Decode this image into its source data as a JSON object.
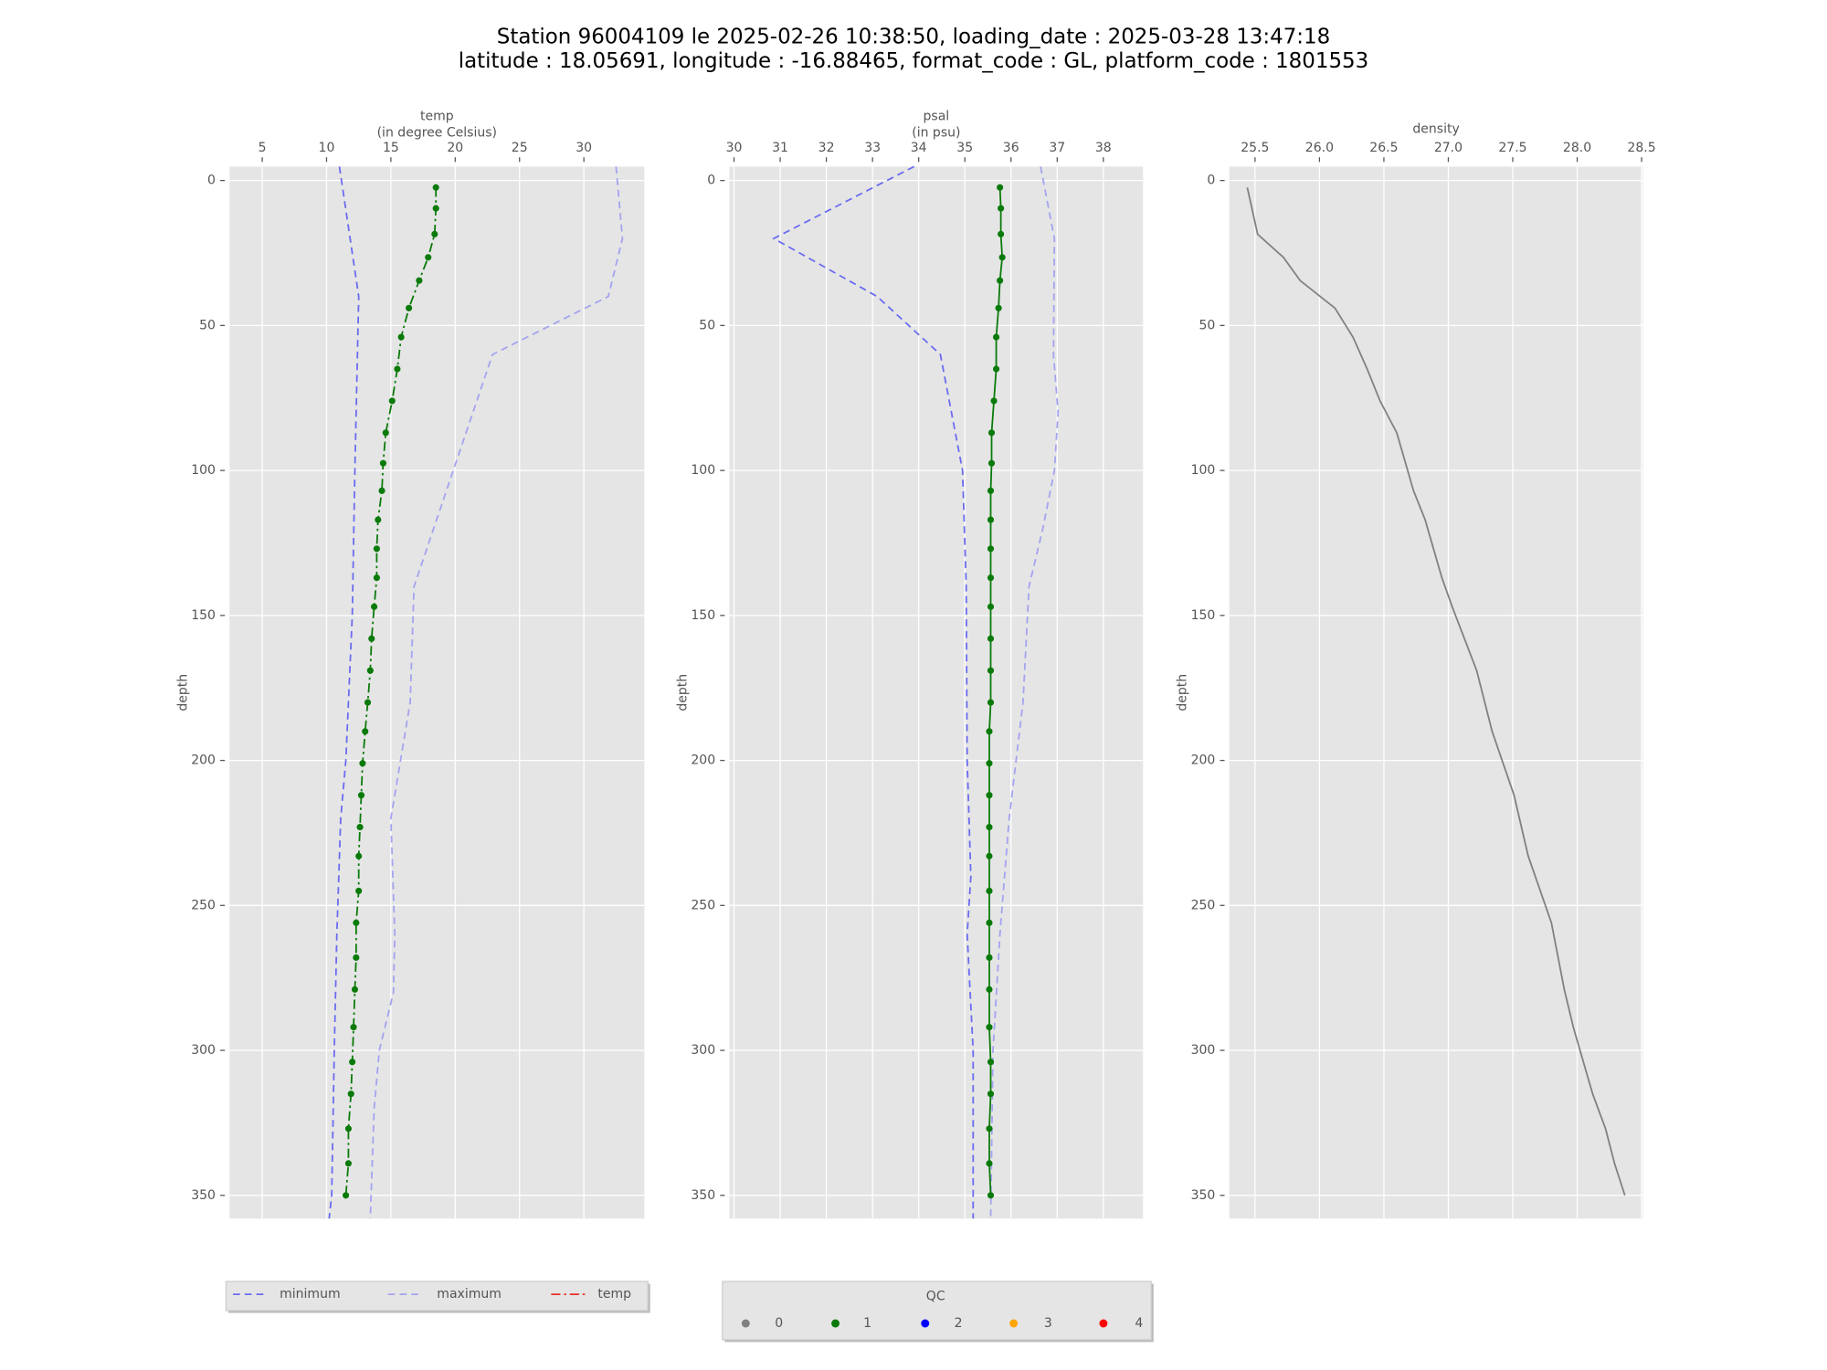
{
  "title": [
    "Station 96004109 le 2025-02-26 10:38:50, loading_date : 2025-03-28 13:47:18",
    "latitude : 18.05691, longitude : -16.88465, format_code : GL, platform_code : 1801553"
  ],
  "chart_data": [
    {
      "type": "line",
      "xlabel": [
        "temp",
        "(in degree Celsius)"
      ],
      "ylabel": "depth",
      "xlim": [
        2.46,
        34.7
      ],
      "xticks": [
        5,
        10,
        15,
        20,
        25,
        30
      ],
      "ylim": [
        -4.8,
        358
      ],
      "yticks": [
        0,
        50,
        100,
        150,
        200,
        250,
        300,
        350
      ],
      "invert_y": true,
      "grid": true,
      "series": [
        {
          "name": "minimum",
          "color": "#6b6bf0",
          "style": "dashed",
          "y": [
            -4.8,
            40,
            100,
            150,
            200,
            220,
            260,
            300,
            350,
            358
          ],
          "values": [
            11.0,
            12.5,
            12.2,
            12.0,
            11.5,
            11.1,
            10.8,
            10.6,
            10.4,
            10.2
          ]
        },
        {
          "name": "maximum",
          "color": "#a3a3f0",
          "style": "dashed",
          "y": [
            -4.8,
            20,
            40,
            60,
            140,
            180,
            220,
            260,
            280,
            300,
            320,
            358
          ],
          "values": [
            32.5,
            33.0,
            31.9,
            22.9,
            16.8,
            16.5,
            15.0,
            15.3,
            15.2,
            14.1,
            13.7,
            13.4
          ]
        },
        {
          "name": "temp",
          "color": "#e8312a",
          "style": "dashdot",
          "y": [
            2.4,
            9.6,
            18.5,
            26.5,
            34.5,
            44,
            54,
            65,
            76,
            87,
            97.5,
            107,
            117,
            127,
            137,
            147,
            158,
            169,
            180,
            190,
            201,
            212,
            223,
            233,
            245,
            256,
            268,
            279,
            292,
            304,
            315,
            327,
            339,
            350
          ],
          "values": [
            18.5,
            18.5,
            18.4,
            17.9,
            17.2,
            16.4,
            15.8,
            15.5,
            15.1,
            14.6,
            14.4,
            14.3,
            14.0,
            13.9,
            13.9,
            13.7,
            13.5,
            13.4,
            13.2,
            13.0,
            12.8,
            12.7,
            12.6,
            12.5,
            12.5,
            12.3,
            12.3,
            12.2,
            12.1,
            12.0,
            11.9,
            11.7,
            11.7,
            11.5
          ],
          "qc": [
            1,
            1,
            1,
            1,
            1,
            1,
            1,
            1,
            1,
            1,
            1,
            1,
            1,
            1,
            1,
            1,
            1,
            1,
            1,
            1,
            1,
            1,
            1,
            1,
            1,
            1,
            1,
            1,
            1,
            1,
            1,
            1,
            1,
            1
          ]
        }
      ]
    },
    {
      "type": "line",
      "xlabel": [
        "psal",
        "(in psu)"
      ],
      "ylabel": "depth",
      "xlim": [
        29.9,
        38.86
      ],
      "xticks": [
        30,
        31,
        32,
        33,
        34,
        35,
        36,
        37,
        38
      ],
      "ylim": [
        -4.8,
        358
      ],
      "yticks": [
        0,
        50,
        100,
        150,
        200,
        250,
        300,
        350
      ],
      "invert_y": true,
      "grid": true,
      "series": [
        {
          "color": "#6b6bf0",
          "style": "dashed",
          "y": [
            -4.8,
            20,
            40,
            60,
            100,
            140,
            200,
            240,
            260,
            300,
            358
          ],
          "values": [
            33.9,
            30.86,
            33.1,
            34.47,
            34.95,
            35.03,
            35.05,
            35.13,
            35.05,
            35.18,
            35.18
          ]
        },
        {
          "color": "#a3a3f0",
          "style": "dashed",
          "y": [
            -4.8,
            20,
            60,
            80,
            100,
            120,
            140,
            180,
            220,
            260,
            300,
            358
          ],
          "values": [
            36.64,
            36.94,
            36.92,
            37.02,
            36.94,
            36.69,
            36.39,
            36.26,
            35.96,
            35.76,
            35.61,
            35.56
          ]
        },
        {
          "color": "#e8312a",
          "style": "solid",
          "y": [
            2.4,
            9.6,
            18.5,
            26.5,
            34.5,
            44,
            54,
            65,
            76,
            87,
            97.5,
            107,
            117,
            127,
            137,
            147,
            158,
            169,
            180,
            190,
            201,
            212,
            223,
            233,
            245,
            256,
            268,
            279,
            292,
            304,
            315,
            327,
            339,
            350
          ],
          "values": [
            35.76,
            35.78,
            35.78,
            35.81,
            35.76,
            35.73,
            35.68,
            35.68,
            35.63,
            35.58,
            35.58,
            35.56,
            35.56,
            35.56,
            35.56,
            35.56,
            35.56,
            35.56,
            35.56,
            35.53,
            35.53,
            35.53,
            35.53,
            35.53,
            35.53,
            35.53,
            35.53,
            35.53,
            35.53,
            35.56,
            35.56,
            35.53,
            35.53,
            35.56
          ],
          "qc": [
            1,
            1,
            1,
            1,
            1,
            1,
            1,
            1,
            1,
            1,
            1,
            1,
            1,
            1,
            1,
            1,
            1,
            1,
            1,
            1,
            1,
            1,
            1,
            1,
            1,
            1,
            1,
            1,
            1,
            1,
            1,
            1,
            1,
            1
          ]
        }
      ]
    },
    {
      "type": "line",
      "title": "density",
      "ylabel": "depth",
      "xlim": [
        25.3,
        28.51
      ],
      "xticks": [
        25.5,
        {
          "value": 26,
          "label": "26.0"
        },
        26.5,
        {
          "value": 27,
          "label": "27.0"
        },
        27.5,
        {
          "value": 28,
          "label": "28.0"
        },
        28.5
      ],
      "ylim": [
        -4.8,
        358
      ],
      "yticks": [
        0,
        50,
        100,
        150,
        200,
        250,
        300,
        350
      ],
      "invert_y": true,
      "grid": true,
      "series": [
        {
          "color": "#808080",
          "style": "solid",
          "y": [
            2.4,
            18.5,
            26.5,
            34.5,
            44,
            54,
            65,
            76,
            87,
            107,
            117,
            137,
            147,
            169,
            190,
            212,
            233,
            256,
            279,
            292,
            315,
            327,
            339,
            350
          ],
          "values": [
            25.44,
            25.52,
            25.72,
            25.85,
            26.12,
            26.26,
            26.37,
            26.47,
            26.6,
            26.73,
            26.82,
            26.95,
            27.03,
            27.22,
            27.34,
            27.51,
            27.62,
            27.8,
            27.9,
            27.97,
            28.12,
            28.22,
            28.29,
            28.37
          ]
        }
      ]
    }
  ],
  "qc_legend": {
    "title": "QC",
    "entries": [
      {
        "label": "0",
        "color": "#808080"
      },
      {
        "label": "1",
        "color": "#0a7a0a"
      },
      {
        "label": "2",
        "color": "#0000ff"
      },
      {
        "label": "3",
        "color": "#ffa500"
      },
      {
        "label": "4",
        "color": "#ff0000"
      }
    ]
  }
}
